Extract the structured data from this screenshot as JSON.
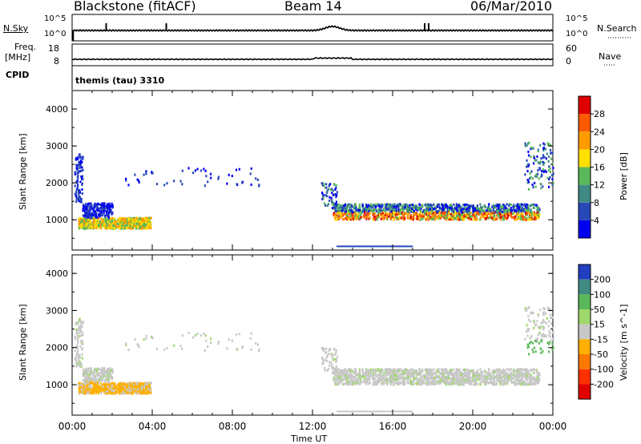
{
  "header": {
    "station": "Blackstone (fitACF)",
    "beam": "Beam 14",
    "date": "06/Mar/2010"
  },
  "left_labels": {
    "nsky": "N.Sky",
    "nsky_top": "10^5",
    "nsky_bot": "10^0",
    "freq": "Freq.",
    "freq_unit": "[MHz]",
    "freq_top": "18",
    "freq_bot": "8",
    "cpid": "CPID"
  },
  "right_labels": {
    "nsearch": "N.Search",
    "nsearch_top": "10^5",
    "nsearch_bot": "10^0",
    "nave": "Nave",
    "nave_top": "60",
    "nave_bot": "0"
  },
  "cpid_text": "themis (tau) 3310",
  "chart_data": [
    {
      "type": "heatmap",
      "name": "power_panel",
      "xlabel": "",
      "ylabel": "Slant Range [km]",
      "xlim": [
        0,
        24
      ],
      "ylim": [
        180,
        4500
      ],
      "yticks": [
        "1000",
        "2000",
        "3000",
        "4000"
      ],
      "colorbar": {
        "label": "Power [dB]",
        "ticks": [
          "4",
          "8",
          "12",
          "16",
          "20",
          "24",
          "28"
        ],
        "colors": [
          "#0000f0",
          "#2848b8",
          "#3f8b84",
          "#5ab85a",
          "#ffe000",
          "#ff9c00",
          "#ff5a00",
          "#e00000"
        ]
      }
    },
    {
      "type": "heatmap",
      "name": "velocity_panel",
      "xlabel": "Time UT",
      "ylabel": "Slant Range [km]",
      "xlim": [
        0,
        24
      ],
      "ylim": [
        180,
        4500
      ],
      "xticks": [
        "00:00",
        "04:00",
        "08:00",
        "12:00",
        "16:00",
        "20:00",
        "00:00"
      ],
      "yticks": [
        "1000",
        "2000",
        "3000",
        "4000"
      ],
      "colorbar": {
        "label": "Velocity [m s^-1]",
        "ticks": [
          "200",
          "100",
          "50",
          "15",
          "-15",
          "-50",
          "-100",
          "-200"
        ],
        "colors": [
          "#2040c0",
          "#3f8b84",
          "#5ab85a",
          "#9fd86b",
          "#c8c8c8",
          "#ffb000",
          "#ff7800",
          "#ff3000",
          "#e00000"
        ]
      }
    }
  ]
}
